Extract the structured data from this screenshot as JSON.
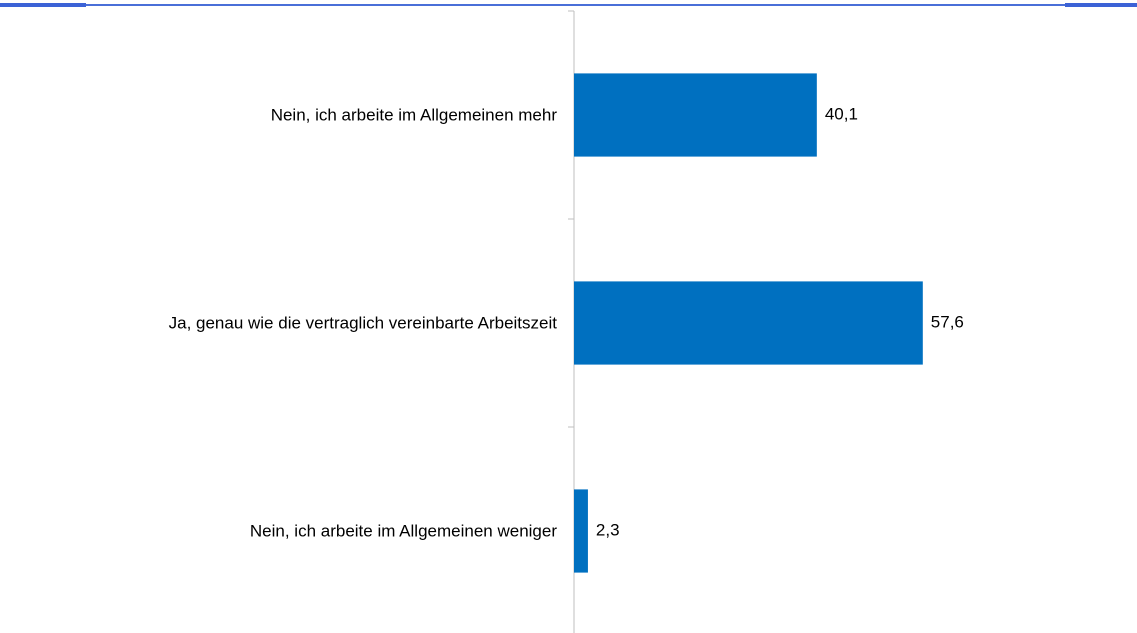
{
  "chart_data": {
    "type": "bar",
    "orientation": "horizontal",
    "categories": [
      "Nein, ich arbeite im Allgemeinen mehr",
      "Ja, genau wie die vertraglich vereinbarte Arbeitszeit",
      "Nein, ich arbeite im Allgemeinen weniger"
    ],
    "values": [
      40.1,
      57.6,
      2.3
    ],
    "value_labels": [
      "40,1",
      "57,6",
      "2,3"
    ],
    "color": "#0070c0",
    "xlim": [
      0,
      90
    ]
  }
}
